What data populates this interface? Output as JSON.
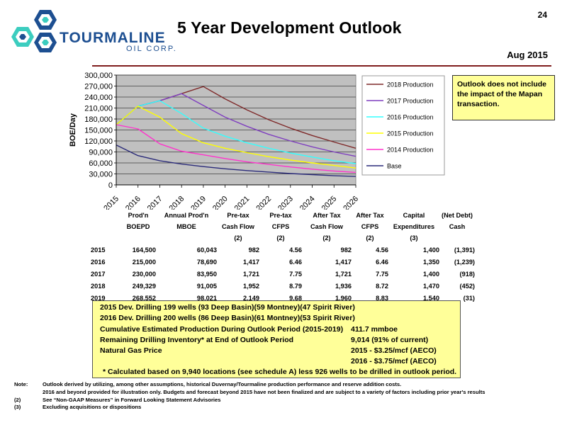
{
  "page_number": "24",
  "logo": {
    "name": "TOURMALINE",
    "sub": "OIL CORP."
  },
  "title": "5 Year Development Outlook",
  "date": "Aug 2015",
  "note_box": "Outlook does not include the impact of the Mapan transaction.",
  "colors": {
    "base": "#2b2b7a",
    "p2014": "#ff33cc",
    "p2015": "#ffff00",
    "p2016": "#33ffff",
    "p2017": "#7f3fbf",
    "p2018": "#7f2a2a",
    "plot_bg": "#c0c0c0",
    "box_yellow": "#ffff99"
  },
  "chart_data": {
    "type": "line",
    "ylabel": "BOE/Day",
    "xlabel": "",
    "x": [
      "2015",
      "2016",
      "2017",
      "2018",
      "2019",
      "2020",
      "2021",
      "2022",
      "2023",
      "2024",
      "2025",
      "2026"
    ],
    "ylim": [
      0,
      300000
    ],
    "yticks": [
      "0",
      "30,000",
      "60,000",
      "90,000",
      "120,000",
      "150,000",
      "180,000",
      "210,000",
      "240,000",
      "270,000",
      "300,000"
    ],
    "legend_position": "right",
    "grid": true,
    "series": [
      {
        "name": "2018 Production",
        "color": "#7f2a2a",
        "values": [
          164500,
          215000,
          230000,
          249329,
          268552,
          235000,
          205000,
          178000,
          155000,
          135000,
          117000,
          100000
        ]
      },
      {
        "name": "2017 Production",
        "color": "#7f3fbf",
        "values": [
          164500,
          215000,
          230000,
          249329,
          217000,
          185000,
          160000,
          138000,
          120000,
          104000,
          90000,
          78000
        ]
      },
      {
        "name": "2016 Production",
        "color": "#33ffff",
        "values": [
          164500,
          215000,
          230000,
          195000,
          155000,
          133000,
          115000,
          100000,
          87000,
          76000,
          66000,
          58000
        ]
      },
      {
        "name": "2015 Production",
        "color": "#ffff00",
        "values": [
          164500,
          215000,
          185000,
          140000,
          115000,
          100000,
          88000,
          77000,
          68000,
          60000,
          53000,
          46000
        ]
      },
      {
        "name": "2014 Production",
        "color": "#ff33cc",
        "values": [
          164500,
          153000,
          112000,
          92000,
          82000,
          72000,
          63000,
          56000,
          49000,
          43000,
          38000,
          34000
        ]
      },
      {
        "name": "Base",
        "color": "#2b2b7a",
        "values": [
          109000,
          80000,
          66000,
          57000,
          50000,
          44000,
          39000,
          35000,
          31000,
          28000,
          25000,
          23000
        ]
      }
    ]
  },
  "table": {
    "headers": [
      [
        "",
        "Prod'n",
        "Annual Prod'n",
        "Pre-tax",
        "Pre-tax",
        "After Tax",
        "After Tax",
        "Capital",
        "(Net Debt)"
      ],
      [
        "",
        "BOEPD",
        "MBOE",
        "Cash Flow",
        "CFPS",
        "Cash Flow",
        "CFPS",
        "Expenditures",
        "Cash"
      ],
      [
        "",
        "",
        "",
        "(2)",
        "(2)",
        "(2)",
        "(2)",
        "(3)",
        ""
      ]
    ],
    "rows": [
      [
        "2015",
        "164,500",
        "60,043",
        "982",
        "4.56",
        "982",
        "4.56",
        "1,400",
        "(1,391)"
      ],
      [
        "2016",
        "215,000",
        "78,690",
        "1,417",
        "6.46",
        "1,417",
        "6.46",
        "1,350",
        "(1,239)"
      ],
      [
        "2017",
        "230,000",
        "83,950",
        "1,721",
        "7.75",
        "1,721",
        "7.75",
        "1,400",
        "(918)"
      ],
      [
        "2018",
        "249,329",
        "91,005",
        "1,952",
        "8.79",
        "1,936",
        "8.72",
        "1,470",
        "(452)"
      ],
      [
        "2019",
        "268,552",
        "98,021",
        "2,149",
        "9.68",
        "1,960",
        "8.83",
        "1,540",
        "(31)"
      ]
    ]
  },
  "summary": {
    "line1": "2015 Dev. Drilling 199 wells (93 Deep Basin)(59 Montney)(47 Spirit River)",
    "line2": "2016 Dev. Drilling 200 wells (86 Deep Basin)(61 Montney)(53 Spirit River)",
    "line3_label": "Cumulative Estimated Production During Outlook Period (2015-2019)",
    "line3_value": "411.7 mmboe",
    "line4_label": "Remaining Drilling Inventory* at End of Outlook Period",
    "line4_value": "9,014 (91% of current)",
    "line5_label": "Natural Gas Price",
    "line5_value": "2015 - $3.25/mcf (AECO)",
    "line6_value": "2016 - $3.75/mcf (AECO)",
    "footnote": "*  Calculated based on 9,940 locations (see schedule A) less 926 wells to be drilled in outlook period."
  },
  "notes": [
    {
      "mark": "Note:",
      "text": "Outlook derived by utilizing, among other assumptions, historical Duvernay/Tourmaline production performance and reserve addition costs."
    },
    {
      "mark": "",
      "text": "2016 and beyond provided for illustration only.  Budgets and forecast beyond 2015 have not been finalized and are subject to a variety of factors including prior year's results"
    },
    {
      "mark": "(2)",
      "text": "See “Non-GAAP Measures” in Forward Looking Statement Advisories"
    },
    {
      "mark": "(3)",
      "text": "Excluding acquisitions or dispositions"
    }
  ]
}
